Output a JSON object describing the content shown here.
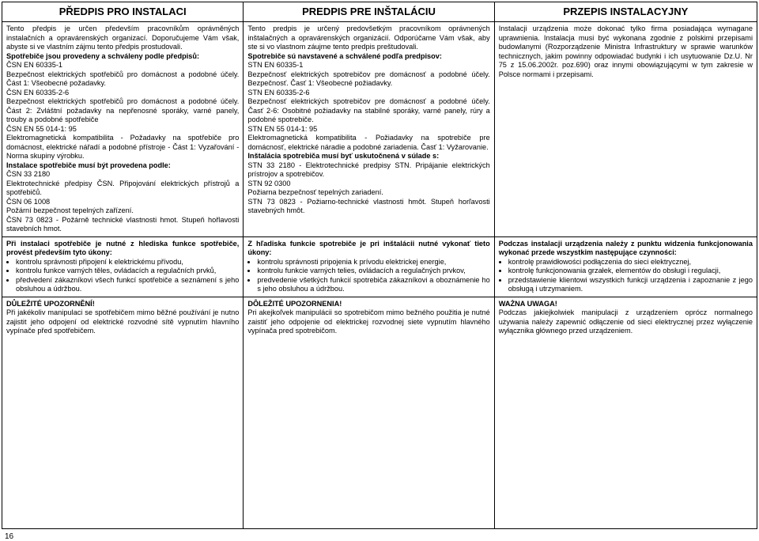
{
  "headers": {
    "cz": "PŘEDPIS PRO INSTALACI",
    "sk": "PREDPIS PRE INŠTALÁCIU",
    "pl": "PRZEPIS INSTALACYJNY"
  },
  "section1": {
    "cz": {
      "p1": "Tento předpis je určen především pracovníkům oprávněných instalačních a opravárenských organizací. Doporučujeme Vám však, abyste si ve vlastním zájmu tento předpis prostudovali.",
      "boldA": "Spotřebiče jsou provedeny a schváleny podle předpisů:",
      "p2": "ČSN EN 60335-1",
      "p3": "Bezpečnost elektrických spotřebičů pro domácnost a podobné účely. Část 1: Všeobecné požadavky.",
      "p4": "ČSN EN 60335-2-6",
      "p5": "Bezpečnost elektrických spotřebičů pro domácnost a podobné účely. Část 2: Zvláštní požadavky na nepřenosné sporáky, varné panely, trouby a podobné spotřebiče",
      "p6": "ČSN EN 55 014-1: 95",
      "p7": "Elektromagnetická kompatibilita - Požadavky na spotřebiče pro domácnost, elektrické nářadí a podobné přístroje - Část 1: Vyzařování - Norma skupiny výrobku.",
      "boldB": "Instalace spotřebiče musí být provedena podle:",
      "p8": "ČSN 33 2180",
      "p9": "Elektrotechnické předpisy ČSN. Připojování elektrických přístrojů a spotřebičů.",
      "p10": "ČSN 06 1008",
      "p11": "Požární bezpečnost tepelných zařízení.",
      "p12": "ČSN 73 0823 - Požárně technické vlastnosti hmot. Stupeň hořlavosti stavebních hmot."
    },
    "sk": {
      "p1": "Tento predpis je určený predovšetkým pracovníkom oprávnených inštalačných a opravárenských organizácií. Odporúčame Vám však, aby ste si vo vlastnom záujme tento predpis preštudovali.",
      "boldA": "Spotrebiče sú navstavené a schválené podľa predpisov:",
      "p2": "STN EN 60335-1",
      "p3": "Bezpečnosť elektrických spotrebičov pre domácnosť a podobné účely. Bezpečnosť. Časť 1: Všeobecné požiadavky.",
      "p4": "STN EN 60335-2-6",
      "p5": "Bezpečnosť elektrických spotrebičov pre domácnosť a podobné účely. Časť 2-6: Osobitné požiadavky na stabilné sporáky, varné panely, rúry a podobné spotrebiče.",
      "p6": "STN EN 55 014-1: 95",
      "p7": "Elektromagnetická kompatibilita - Požiadavky na spotrebiče pre domácnosť, elektrické náradie a podobné zariadenia. Časť 1: Vyžarovanie.",
      "boldB": "Inštalácia spotrebiča musí byť uskutočnená v súlade s:",
      "p8": "STN 33 2180 - Elektrotechnické predpisy STN. Pripájanie elektrických prístrojov a spotrebičov.",
      "p9": "STN 92 0300",
      "p10": "Požiarna bezpečnosť tepelných zariadení.",
      "p11": "STN 73 0823 - Požiarno-technické vlastnosti hmôt. Stupeň horľavosti stavebných hmôt."
    },
    "pl": {
      "p1": "Instalacji urządzenia może dokonać tylko firma posiadająca wymagane uprawnienia. Instalacja musi być wykonana zgodnie z polskimi przepisami budowlanymi (Rozporządzenie Ministra Infrastruktury w sprawie warunków technicznych, jakim powinny odpowiadać budynki i ich usytuowanie Dz.U. Nr 75 z 15.06.2002r. poz.690) oraz innymi obowiązującymi w tym zakresie w Polsce normami i przepisami."
    }
  },
  "section2": {
    "cz": {
      "bold": "Při instalaci spotřebiče je nutné z hlediska funkce spotřebiče, provést především tyto úkony:",
      "li1": "kontrolu správnosti připojení k elektrickému přívodu,",
      "li2": "kontrolu funkce varných těles, ovládacích a regulačních prvků,",
      "li3": "předvedení zákazníkovi všech funkcí spotřebiče a seznámení s jeho obsluhou a údržbou."
    },
    "sk": {
      "bold": "Z hľadiska funkcie spotrebiče je pri inštalácii nutné vykonať tieto úkony:",
      "li1": "kontrolu správnosti pripojenia k prívodu elektrickej energie,",
      "li2": "kontrolu funkcie varných telies, ovládacích a regulačných prvkov,",
      "li3": "predvedenie všetkých funkcií spotrebiča zákazníkovi a oboznámenie ho s jeho obsluhou a údržbou."
    },
    "pl": {
      "bold": "Podczas instalacji urządzenia należy z punktu widzenia funkcjonowania wykonać przede wszystkim następujące czynności:",
      "li1": "kontrolę prawidłowości podłączenia do sieci elektrycznej,",
      "li2": "kontrolę funkcjonowania grzałek, elementów do obsługi i regulacji,",
      "li3": "przedstawienie klientowi wszystkich funkcji urządzenia i zapoznanie z jego obsługą i utrzymaniem."
    }
  },
  "section3": {
    "cz": {
      "bold": "DŮLEŽITÉ UPOZORNĚNÍ!",
      "p": "Při jakékoliv manipulaci se spotřebičem mimo běžné používání je nutno zajistit jeho odpojení od elektrické rozvodné sítě vypnutím hlavního vypínače před spotřebičem."
    },
    "sk": {
      "bold": "DÔLEŽITÉ UPOZORNENIA!",
      "p": "Pri akejkoľvek manipulácii so spotrebičom mimo bežného použitia je nutné zaistiť jeho odpojenie od elektrickej rozvodnej siete vypnutím hlavného vypínača pred spotrebičom."
    },
    "pl": {
      "bold": "WAŻNA UWAGA!",
      "p": "Podczas jakiejkolwiek manipulacji z urządzeniem oprócz normalnego używania należy zapewnić odłączenie od sieci elektrycznej przez wyłączenie wyłącznika głównego przed urządzeniem."
    }
  },
  "pageNumber": "16"
}
